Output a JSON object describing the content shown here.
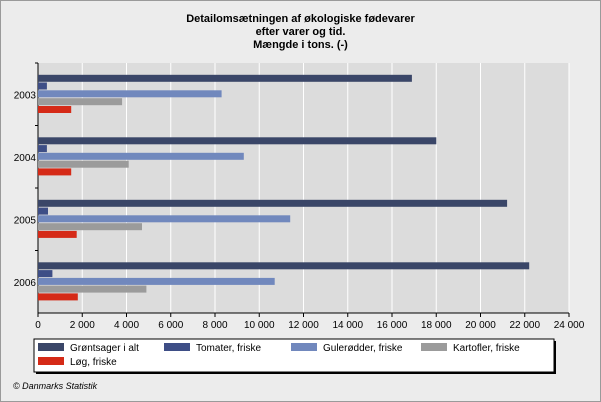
{
  "colors": {
    "plot_bg": "#dcdcdc",
    "grid": "#ffffff",
    "series": [
      "#3a4668",
      "#3e4e86",
      "#7188bd",
      "#9b9b9b",
      "#d52a17"
    ]
  },
  "chart_data": {
    "type": "bar",
    "orientation": "horizontal",
    "title": [
      "Detailomsætningen af økologiske fødevarer",
      "efter varer og tid.",
      "Mængde i tons. (-)"
    ],
    "categories": [
      "2003",
      "2004",
      "2005",
      "2006"
    ],
    "series": [
      {
        "name": "Grøntsager i alt",
        "values": [
          16900,
          18000,
          21200,
          22200
        ]
      },
      {
        "name": "Tomater, friske",
        "values": [
          400,
          400,
          450,
          650
        ]
      },
      {
        "name": "Gulerødder, friske",
        "values": [
          8300,
          9300,
          11400,
          10700
        ]
      },
      {
        "name": "Kartofler, friske",
        "values": [
          3800,
          4100,
          4700,
          4900
        ]
      },
      {
        "name": "Løg, friske",
        "values": [
          1500,
          1500,
          1750,
          1800
        ]
      }
    ],
    "xlim": [
      0,
      24000
    ],
    "xticks": [
      0,
      2000,
      4000,
      6000,
      8000,
      10000,
      12000,
      14000,
      16000,
      18000,
      20000,
      22000,
      24000
    ],
    "xtick_labels": [
      "0",
      "2 000",
      "4 000",
      "6 000",
      "8 000",
      "10 000",
      "12 000",
      "14 000",
      "16 000",
      "18 000",
      "20 000",
      "22 000",
      "24 000"
    ],
    "grid": true,
    "legend_position": "bottom"
  },
  "footer": "© Danmarks Statistik"
}
